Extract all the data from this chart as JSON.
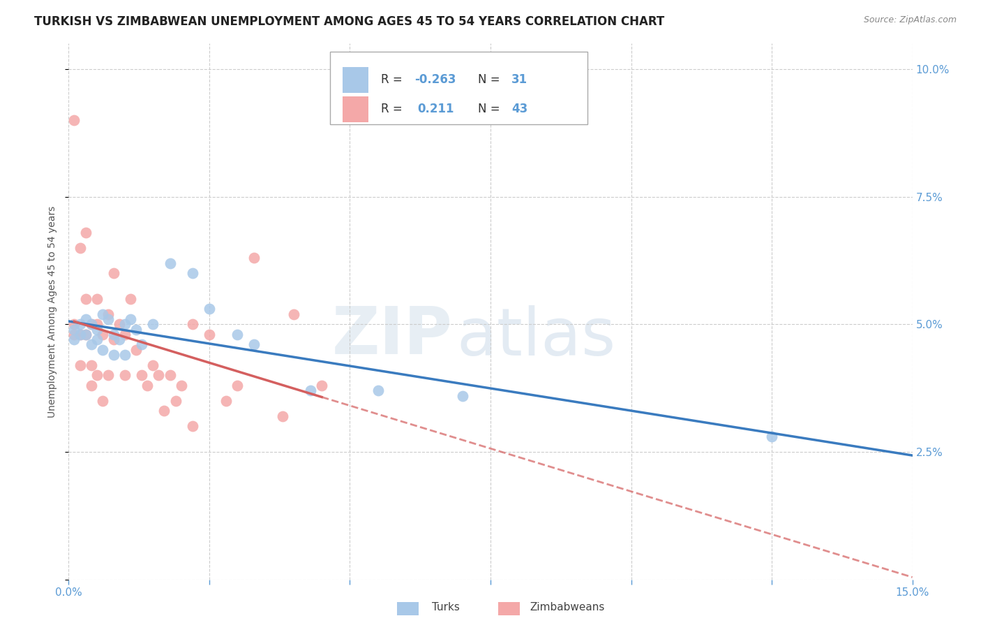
{
  "title": "TURKISH VS ZIMBABWEAN UNEMPLOYMENT AMONG AGES 45 TO 54 YEARS CORRELATION CHART",
  "source": "Source: ZipAtlas.com",
  "ylabel": "Unemployment Among Ages 45 to 54 years",
  "xlim": [
    0.0,
    0.15
  ],
  "ylim": [
    0.0,
    0.105
  ],
  "turks_R": "-0.263",
  "turks_N": "31",
  "zimbabweans_R": "0.211",
  "zimbabweans_N": "43",
  "turks_color": "#a8c8e8",
  "zimbabweans_color": "#f4a8a8",
  "turks_line_color": "#3a7bbf",
  "zimbabweans_line_color": "#d45f5f",
  "watermark_zip": "ZIP",
  "watermark_atlas": "atlas",
  "background_color": "#ffffff",
  "grid_color": "#cccccc",
  "tick_color": "#5b9bd5",
  "title_fontsize": 12,
  "label_fontsize": 10,
  "tick_fontsize": 11,
  "turks_x": [
    0.001,
    0.001,
    0.002,
    0.002,
    0.003,
    0.003,
    0.004,
    0.004,
    0.005,
    0.005,
    0.006,
    0.006,
    0.007,
    0.008,
    0.008,
    0.009,
    0.01,
    0.01,
    0.011,
    0.012,
    0.013,
    0.015,
    0.018,
    0.022,
    0.025,
    0.03,
    0.033,
    0.043,
    0.055,
    0.07,
    0.125
  ],
  "turks_y": [
    0.049,
    0.047,
    0.05,
    0.048,
    0.051,
    0.048,
    0.05,
    0.046,
    0.049,
    0.047,
    0.052,
    0.045,
    0.051,
    0.044,
    0.048,
    0.047,
    0.05,
    0.044,
    0.051,
    0.049,
    0.046,
    0.05,
    0.062,
    0.06,
    0.053,
    0.048,
    0.046,
    0.037,
    0.037,
    0.036,
    0.028
  ],
  "zimbabweans_x": [
    0.001,
    0.001,
    0.001,
    0.002,
    0.002,
    0.002,
    0.003,
    0.003,
    0.003,
    0.004,
    0.004,
    0.004,
    0.005,
    0.005,
    0.005,
    0.006,
    0.006,
    0.007,
    0.007,
    0.008,
    0.008,
    0.009,
    0.01,
    0.01,
    0.011,
    0.012,
    0.013,
    0.014,
    0.015,
    0.016,
    0.017,
    0.018,
    0.019,
    0.02,
    0.022,
    0.022,
    0.025,
    0.028,
    0.03,
    0.033,
    0.038,
    0.04,
    0.045
  ],
  "zimbabweans_y": [
    0.09,
    0.05,
    0.048,
    0.065,
    0.048,
    0.042,
    0.068,
    0.055,
    0.048,
    0.05,
    0.042,
    0.038,
    0.055,
    0.05,
    0.04,
    0.048,
    0.035,
    0.052,
    0.04,
    0.06,
    0.047,
    0.05,
    0.048,
    0.04,
    0.055,
    0.045,
    0.04,
    0.038,
    0.042,
    0.04,
    0.033,
    0.04,
    0.035,
    0.038,
    0.05,
    0.03,
    0.048,
    0.035,
    0.038,
    0.063,
    0.032,
    0.052,
    0.038
  ]
}
